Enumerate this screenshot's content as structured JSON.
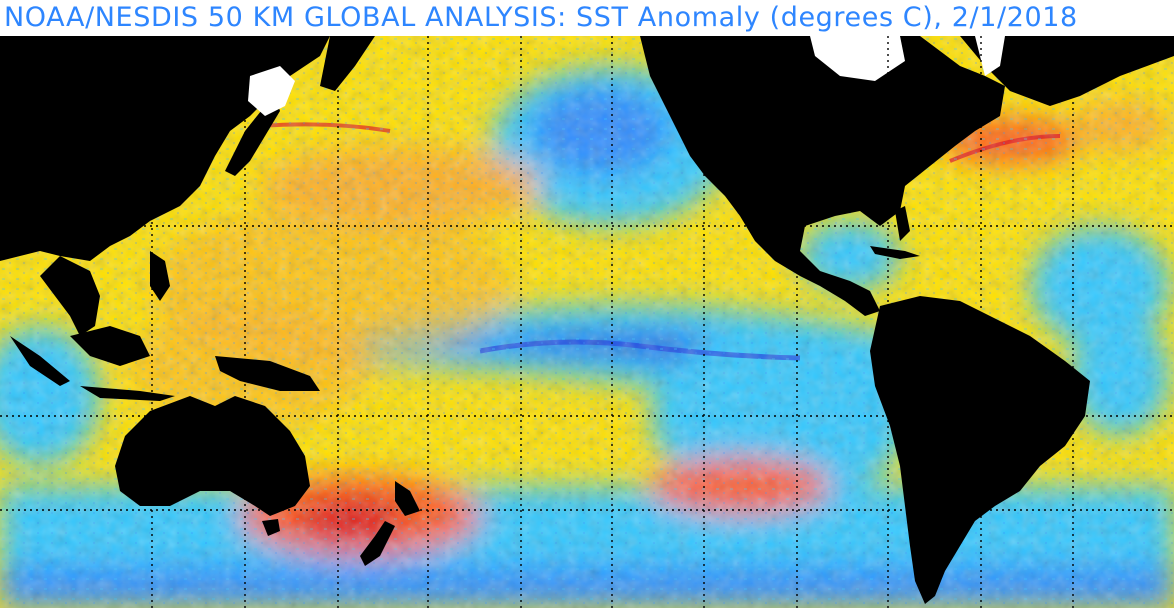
{
  "title": "NOAA/NESDIS 50 KM GLOBAL ANALYSIS: SST Anomaly (degrees C), 2/1/2018",
  "map": {
    "type": "sea-surface-temperature-anomaly",
    "region": "Pacific-centered global view",
    "graticule": "dotted grid lines",
    "land_color": "#000000",
    "ice_color": "#ffffff",
    "anomaly_colors": {
      "strong_cold": "#1f3fe0",
      "cold": "#2f8cff",
      "cool": "#33c8ff",
      "neutral_warm": "#ffe100",
      "warm": "#ffb020",
      "hot": "#ff5a14",
      "very_hot": "#e0141a"
    },
    "features": [
      "La Nina cold tongue along equatorial Pacific",
      "warm anomaly south of Australia / Tasman Sea near New Zealand",
      "warm anomaly in southeast Pacific",
      "warm anomaly along US east coast Gulf Stream",
      "cool anomaly in northeast Pacific"
    ]
  }
}
